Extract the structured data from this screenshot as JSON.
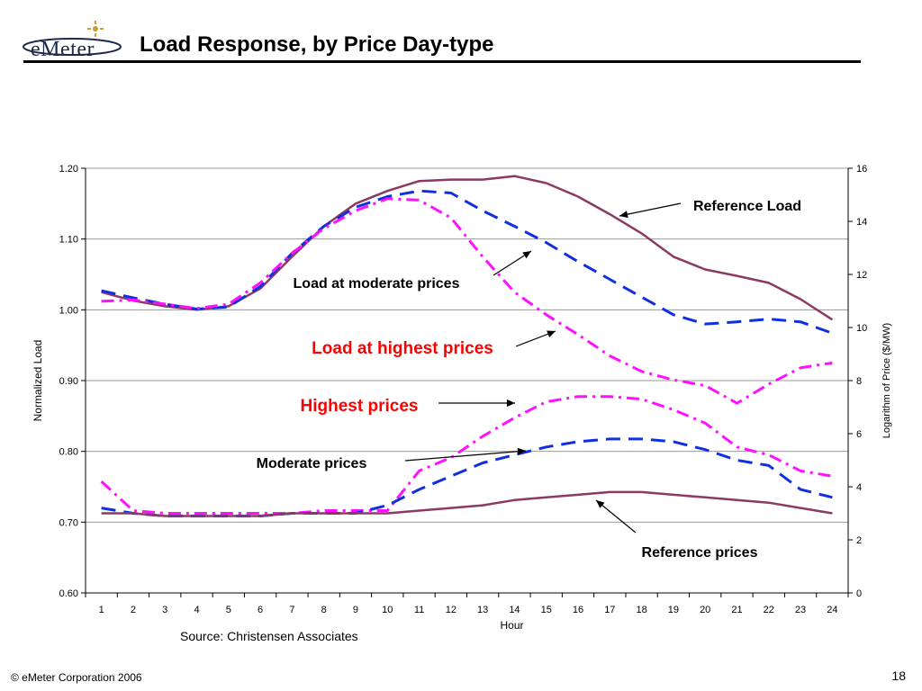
{
  "slide": {
    "title": "Load Response, by Price Day-type",
    "logo_text": "eMeter",
    "source": "Source: Christensen Associates",
    "footer": "© eMeter Corporation 2006",
    "page_number": "18"
  },
  "colors": {
    "reference": "#8b3a62",
    "moderate": "#1030e0",
    "highest": "#ff10ff",
    "highlight_text": "#ff0000",
    "text": "#000000"
  },
  "chart_data": {
    "type": "line",
    "xlabel": "Hour",
    "ylabel": "Normalized Load",
    "y2label": "Logarithm of Price ($/MW)",
    "categories": [
      "1",
      "2",
      "3",
      "4",
      "5",
      "6",
      "7",
      "8",
      "9",
      "10",
      "11",
      "12",
      "13",
      "14",
      "15",
      "16",
      "17",
      "18",
      "19",
      "20",
      "21",
      "22",
      "23",
      "24"
    ],
    "ylim": [
      0.6,
      1.2
    ],
    "yticks": [
      "1.20",
      "1.10",
      "1.00",
      "0.90",
      "0.80",
      "0.70",
      "0.60"
    ],
    "y2lim": [
      0,
      16
    ],
    "y2ticks": [
      "16",
      "14",
      "12",
      "10",
      "8",
      "6",
      "4",
      "2",
      "0"
    ],
    "grid": "horizontal",
    "series": [
      {
        "name": "Reference Load",
        "axis": "left",
        "style": "solid",
        "values": [
          1.025,
          1.013,
          1.005,
          1.0,
          1.005,
          1.03,
          1.075,
          1.118,
          1.15,
          1.168,
          1.182,
          1.184,
          1.184,
          1.189,
          1.179,
          1.16,
          1.135,
          1.108,
          1.075,
          1.057,
          1.048,
          1.038,
          1.015,
          0.986
        ]
      },
      {
        "name": "Load  at moderate prices",
        "axis": "left",
        "style": "dash",
        "values": [
          1.027,
          1.017,
          1.008,
          1.001,
          1.004,
          1.033,
          1.08,
          1.118,
          1.145,
          1.16,
          1.168,
          1.165,
          1.14,
          1.118,
          1.095,
          1.068,
          1.043,
          1.018,
          0.993,
          0.98,
          0.983,
          0.987,
          0.983,
          0.967
        ]
      },
      {
        "name": "Load at highest prices",
        "axis": "left",
        "style": "dashdot",
        "values": [
          1.012,
          1.014,
          1.008,
          1.002,
          1.008,
          1.038,
          1.08,
          1.115,
          1.14,
          1.157,
          1.155,
          1.13,
          1.075,
          1.025,
          0.993,
          0.965,
          0.935,
          0.913,
          0.901,
          0.893,
          0.868,
          0.895,
          0.918,
          0.925
        ]
      },
      {
        "name": "Highest  prices",
        "axis": "right",
        "style": "dashdot",
        "values": [
          4.2,
          3.1,
          3.0,
          3.0,
          3.0,
          3.0,
          3.0,
          3.1,
          3.1,
          3.1,
          4.6,
          5.1,
          5.9,
          6.6,
          7.2,
          7.4,
          7.4,
          7.3,
          6.9,
          6.4,
          5.5,
          5.2,
          4.6,
          4.4
        ]
      },
      {
        "name": "Moderate prices",
        "axis": "right",
        "style": "dash",
        "values": [
          3.2,
          3.0,
          2.9,
          2.9,
          2.9,
          2.9,
          3.0,
          3.0,
          3.0,
          3.3,
          3.9,
          4.4,
          4.9,
          5.2,
          5.5,
          5.7,
          5.8,
          5.8,
          5.7,
          5.4,
          5.0,
          4.8,
          3.9,
          3.6
        ]
      },
      {
        "name": "Reference prices",
        "axis": "right",
        "style": "solid",
        "values": [
          3.0,
          3.0,
          2.9,
          2.9,
          2.9,
          2.9,
          3.0,
          3.0,
          3.0,
          3.0,
          3.1,
          3.2,
          3.3,
          3.5,
          3.6,
          3.7,
          3.8,
          3.8,
          3.7,
          3.6,
          3.5,
          3.4,
          3.2,
          3.0
        ]
      }
    ],
    "annotations": [
      {
        "text": "Reference Load",
        "color": "black"
      },
      {
        "text": "Load  at moderate prices",
        "color": "black"
      },
      {
        "text": "Load at highest prices",
        "color": "red"
      },
      {
        "text": "Highest  prices",
        "color": "red"
      },
      {
        "text": "Moderate prices",
        "color": "black"
      },
      {
        "text": "Reference prices",
        "color": "black"
      }
    ]
  }
}
